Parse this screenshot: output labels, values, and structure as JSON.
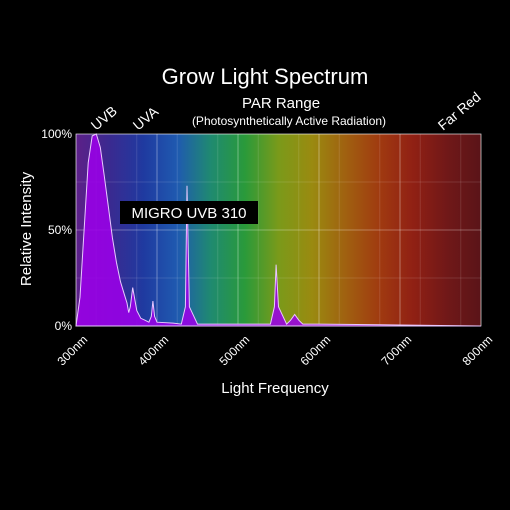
{
  "chart_data": {
    "type": "area",
    "title": "Grow Light Spectrum",
    "xlabel": "Light Frequency",
    "ylabel": "Relative Intensity",
    "xlim": [
      300,
      800
    ],
    "ylim": [
      0,
      100
    ],
    "x_ticks": [
      "300nm",
      "400nm",
      "500nm",
      "600nm",
      "700nm",
      "800nm"
    ],
    "y_ticks": [
      "0%",
      "50%",
      "100%"
    ],
    "band_labels": {
      "uvb": "UVB",
      "uva": "UVA",
      "par": "PAR Range",
      "par_detail": "(Photosynthetically Active Radiation)",
      "far_red": "Far Red"
    },
    "grid": true,
    "series": [
      {
        "name": "MIGRO UVB 310",
        "x": [
          300,
          305,
          310,
          315,
          320,
          325,
          330,
          335,
          340,
          345,
          350,
          355,
          360,
          363,
          365,
          367,
          370,
          375,
          380,
          385,
          390,
          393,
          395,
          397,
          400,
          420,
          430,
          435,
          437,
          440,
          450,
          500,
          540,
          545,
          547,
          550,
          560,
          565,
          570,
          575,
          580,
          600,
          700,
          800
        ],
        "y": [
          0,
          15,
          50,
          85,
          99,
          100,
          93,
          78,
          62,
          46,
          33,
          23,
          16,
          12,
          7,
          10,
          20,
          8,
          4,
          3,
          2,
          5,
          13,
          5,
          2,
          1.5,
          1,
          10,
          73,
          10,
          1,
          1,
          1,
          10,
          32,
          10,
          1,
          3,
          6,
          3,
          1,
          1,
          0.5,
          0
        ]
      }
    ],
    "colors": {
      "series_fill": "#9b00e8",
      "background_gradient": [
        "#5d2088",
        "#3a2a90",
        "#1f3aa0",
        "#1f5ab0",
        "#1f8a70",
        "#2a9a3a",
        "#7a9a1a",
        "#9a8a10",
        "#a06010",
        "#a03a10",
        "#902014",
        "#701818",
        "#5a1418"
      ]
    }
  }
}
